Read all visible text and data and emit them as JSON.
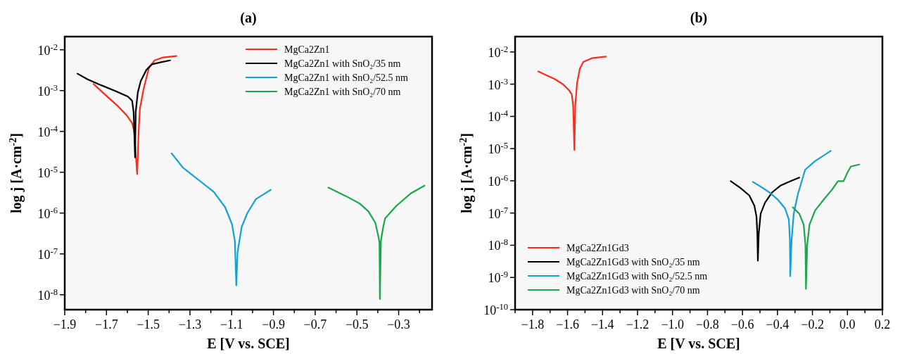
{
  "chart_data": [
    {
      "type": "line",
      "title": "(a)",
      "xlabel": "E [V vs. SCE]",
      "ylabel": "log j [A·cm$^{-2}$]",
      "log": "y",
      "legend": "top right",
      "xlim": [
        -1.9,
        -0.14
      ],
      "xticks": [
        -1.9,
        {
          "value": -1.8,
          "label": null
        },
        -1.7,
        {
          "value": -1.6,
          "label": null
        },
        -1.5,
        {
          "value": -1.4,
          "label": null
        },
        -1.3,
        {
          "value": -1.2,
          "label": null
        },
        -1.1,
        {
          "value": -1.0,
          "label": null
        },
        -0.9,
        {
          "value": -0.8,
          "label": null
        },
        -0.7,
        {
          "value": -0.6,
          "label": null
        },
        -0.5,
        {
          "value": -0.4,
          "label": null
        },
        -0.3,
        {
          "value": -0.2,
          "label": null
        }
      ],
      "ylim": [
        4.3e-09,
        0.021
      ],
      "yticks": [
        {
          "value": 0.01,
          "label": "10$^{-2}$"
        },
        {
          "value": 0.001,
          "label": "10$^{-3}$"
        },
        {
          "value": 0.0001,
          "label": "10$^{-4}$"
        },
        {
          "value": 1e-05,
          "label": "10$^{-5}$"
        },
        {
          "value": 1e-06,
          "label": "10$^{-6}$"
        },
        {
          "value": 1e-07,
          "label": "10$^{-7}$"
        },
        {
          "value": 1e-08,
          "label": "10$^{-8}$"
        }
      ],
      "series": [
        {
          "name": "MgCa2Zn1",
          "color": "#ff2a1a",
          "x": [
            -1.762,
            -1.711,
            -1.644,
            -1.604,
            -1.577,
            -1.567,
            -1.553,
            -1.546,
            -1.54,
            -1.523,
            -1.496,
            -1.469,
            -1.429,
            -1.365
          ],
          "values": [
            0.00145,
            0.00083,
            0.00041,
            0.00025,
            0.00016,
            9.8e-05,
            9e-06,
            9.8e-05,
            0.00035,
            0.00105,
            0.0037,
            0.0055,
            0.0065,
            0.007
          ]
        },
        {
          "name": "MgCa2Zn1 with SnO₂/35 nm",
          "color": "#000000",
          "x": [
            -1.839,
            -1.792,
            -1.725,
            -1.658,
            -1.597,
            -1.577,
            -1.57,
            -1.563,
            -1.56,
            -1.55,
            -1.536,
            -1.509,
            -1.482,
            -1.442,
            -1.395
          ],
          "values": [
            0.0026,
            0.0019,
            0.00135,
            0.00098,
            0.00071,
            0.00056,
            0.0003,
            2.3e-05,
            0.0003,
            0.00089,
            0.0017,
            0.0032,
            0.0044,
            0.0049,
            0.0055
          ]
        },
        {
          "name": "MgCa2Zn1 with SnO₂/52.5 nm",
          "color": "#12a0d7",
          "x": [
            -1.388,
            -1.334,
            -1.254,
            -1.186,
            -1.132,
            -1.099,
            -1.085,
            -1.078,
            -1.072,
            -1.052,
            -1.025,
            -0.984,
            -0.913
          ],
          "values": [
            2.9e-05,
            1.3e-05,
            6.2e-06,
            3.3e-06,
            1.4e-06,
            5.4e-07,
            2.1e-07,
            1.7e-08,
            1.1e-07,
            4.6e-07,
            1e-06,
            2.2e-06,
            3.7e-06
          ]
        },
        {
          "name": "MgCa2Zn1 with SnO₂/70 nm",
          "color": "#1aa64a",
          "x": [
            -0.637,
            -0.553,
            -0.486,
            -0.445,
            -0.412,
            -0.398,
            -0.392,
            -0.39,
            -0.385,
            -0.375,
            -0.365,
            -0.311,
            -0.243,
            -0.176
          ],
          "values": [
            4.2e-06,
            2.6e-06,
            1.7e-06,
            1.1e-06,
            5.8e-07,
            2.8e-07,
            1.9e-07,
            7.8e-09,
            2.1e-07,
            4.3e-07,
            7.4e-07,
            1.5e-06,
            3e-06,
            4.7e-06
          ]
        }
      ]
    },
    {
      "type": "line",
      "title": "(b)",
      "xlabel": "E [V vs. SCE]",
      "ylabel": "log j [A·cm$^{-2}$]",
      "log": "y",
      "legend": "bottom left",
      "xlim": [
        -1.9,
        0.2
      ],
      "xticks": [
        {
          "value": -1.9,
          "label": null
        },
        -1.8,
        {
          "value": -1.7,
          "label": null
        },
        -1.6,
        {
          "value": -1.5,
          "label": null
        },
        -1.4,
        {
          "value": -1.3,
          "label": null
        },
        -1.2,
        {
          "value": -1.1,
          "label": null
        },
        {
          "value": -1.0,
          "label": "−1.0"
        },
        {
          "value": -0.9,
          "label": null
        },
        -0.8,
        {
          "value": -0.7,
          "label": null
        },
        -0.6,
        {
          "value": -0.5,
          "label": null
        },
        -0.4,
        {
          "value": -0.3,
          "label": null
        },
        -0.2,
        {
          "value": -0.1,
          "label": null
        },
        {
          "value": 0,
          "label": "0.0"
        },
        {
          "value": 0.1,
          "label": null
        },
        0.2
      ],
      "ylim": [
        1e-10,
        0.03
      ],
      "yticks": [
        {
          "value": 0.01,
          "label": "10$^{-2}$"
        },
        {
          "value": 0.001,
          "label": "10$^{-3}$"
        },
        {
          "value": 0.0001,
          "label": "10$^{-4}$"
        },
        {
          "value": 1e-05,
          "label": "10$^{-5}$"
        },
        {
          "value": 1e-06,
          "label": "10$^{-6}$"
        },
        {
          "value": 1e-07,
          "label": "10$^{-7}$"
        },
        {
          "value": 1e-08,
          "label": "10$^{-8}$"
        },
        {
          "value": 1e-09,
          "label": "10$^{-9}$"
        },
        {
          "value": 1e-10,
          "label": "10$^{-10}$"
        }
      ],
      "series": [
        {
          "name": "MgCa2Zn1Gd3",
          "color": "#ff2a1a",
          "x": [
            -1.767,
            -1.723,
            -1.674,
            -1.625,
            -1.592,
            -1.576,
            -1.568,
            -1.561,
            -1.556,
            -1.546,
            -1.53,
            -1.51,
            -1.461,
            -1.38
          ],
          "values": [
            0.0025,
            0.0019,
            0.00145,
            0.00098,
            0.00065,
            0.00048,
            0.00021,
            9e-06,
            0.00021,
            0.00107,
            0.003,
            0.0049,
            0.0064,
            0.0072
          ]
        },
        {
          "name": "MgCa2Zn1Gd3 with SnO₂/35 nm",
          "color": "#000000",
          "x": [
            -0.667,
            -0.61,
            -0.561,
            -0.532,
            -0.52,
            -0.515,
            -0.512,
            -0.507,
            -0.496,
            -0.471,
            -0.43,
            -0.381,
            -0.324,
            -0.275
          ],
          "values": [
            9.8e-07,
            5.9e-07,
            3.5e-07,
            1.7e-07,
            7.8e-08,
            2.3e-08,
            3.3e-09,
            2.3e-08,
            9.5e-08,
            2.1e-07,
            4.4e-07,
            7.2e-07,
            9.8e-07,
            1.26e-06
          ]
        },
        {
          "name": "MgCa2Zn1Gd3 with SnO₂/52.5 nm",
          "color": "#12a0d7",
          "x": [
            -0.541,
            -0.496,
            -0.447,
            -0.398,
            -0.357,
            -0.335,
            -0.329,
            -0.327,
            -0.319,
            -0.307,
            -0.283,
            -0.258,
            -0.242,
            -0.185,
            -0.095
          ],
          "values": [
            9.3e-07,
            6.6e-07,
            4.4e-07,
            2.6e-07,
            1.4e-07,
            6.3e-08,
            1.5e-08,
            1.1e-09,
            1.5e-08,
            9.5e-08,
            3.9e-07,
            1.1e-06,
            2.2e-06,
            4.1e-06,
            8.5e-06
          ]
        },
        {
          "name": "MgCa2Zn1Gd3 with SnO₂/70 nm",
          "color": "#1aa64a",
          "x": [
            -0.312,
            -0.275,
            -0.25,
            -0.24,
            -0.237,
            -0.23,
            -0.217,
            -0.185,
            -0.136,
            -0.087,
            -0.054,
            -0.022,
            0.0,
            0.02,
            0.068
          ],
          "values": [
            1.5e-07,
            9.5e-08,
            4.3e-08,
            1e-08,
            4.4e-10,
            1e-08,
            4.3e-08,
            1.2e-07,
            2.6e-07,
            5.4e-07,
            9.8e-07,
            9.8e-07,
            1.8e-06,
            2.8e-06,
            3.2e-06
          ]
        }
      ]
    }
  ]
}
